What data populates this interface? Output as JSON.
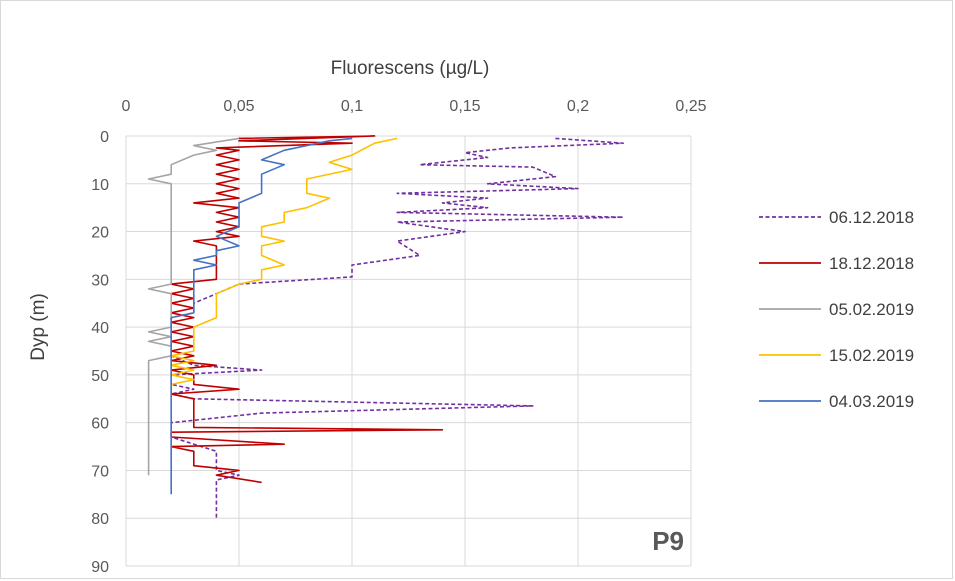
{
  "chart_data": {
    "type": "line",
    "title": "",
    "xlabel": "Fluorescens (µg/L)",
    "ylabel": "Dyp (m)",
    "xlim": [
      0,
      0.25
    ],
    "ylim": [
      0,
      90
    ],
    "x_ticks": [
      "0",
      "0,05",
      "0,1",
      "0,15",
      "0,2",
      "0,25"
    ],
    "y_ticks": [
      "0",
      "10",
      "20",
      "30",
      "40",
      "50",
      "60",
      "70",
      "80",
      "90"
    ],
    "x_tick_values": [
      0,
      0.05,
      0.1,
      0.15,
      0.2,
      0.25
    ],
    "y_tick_values": [
      0,
      10,
      20,
      30,
      40,
      50,
      60,
      70,
      80,
      90
    ],
    "x_axis_position": "top",
    "y_axis_inverted": true,
    "grid": true,
    "legend_position": "right",
    "panel_label": "P9",
    "series": [
      {
        "name": "06.12.2018",
        "color": "#7030a0",
        "dash": "dashed",
        "points": [
          [
            0.19,
            0.5
          ],
          [
            0.22,
            1.5
          ],
          [
            0.17,
            2.5
          ],
          [
            0.15,
            3.5
          ],
          [
            0.16,
            4.5
          ],
          [
            0.15,
            5
          ],
          [
            0.13,
            6
          ],
          [
            0.18,
            6.5
          ],
          [
            0.19,
            8.5
          ],
          [
            0.16,
            10
          ],
          [
            0.2,
            11
          ],
          [
            0.12,
            12
          ],
          [
            0.16,
            13
          ],
          [
            0.14,
            14
          ],
          [
            0.16,
            15
          ],
          [
            0.12,
            16
          ],
          [
            0.22,
            17
          ],
          [
            0.12,
            18
          ],
          [
            0.15,
            20
          ],
          [
            0.12,
            22
          ],
          [
            0.13,
            25
          ],
          [
            0.1,
            27
          ],
          [
            0.1,
            29.5
          ],
          [
            0.05,
            31
          ],
          [
            0.04,
            33
          ],
          [
            0.03,
            35
          ],
          [
            0.03,
            37
          ],
          [
            0.02,
            38
          ],
          [
            0.02,
            42
          ],
          [
            0.02,
            46
          ],
          [
            0.03,
            48
          ],
          [
            0.06,
            49
          ],
          [
            0.02,
            50
          ],
          [
            0.02,
            52
          ],
          [
            0.03,
            53
          ],
          [
            0.02,
            54
          ],
          [
            0.03,
            55
          ],
          [
            0.18,
            56.5
          ],
          [
            0.06,
            58
          ],
          [
            0.02,
            60
          ],
          [
            0.02,
            63
          ],
          [
            0.04,
            66
          ],
          [
            0.04,
            70
          ],
          [
            0.05,
            71
          ],
          [
            0.04,
            72
          ],
          [
            0.04,
            80
          ]
        ]
      },
      {
        "name": "18.12.2018",
        "color": "#c00000",
        "dash": "solid",
        "points": [
          [
            0.05,
            0.5
          ],
          [
            0.11,
            0
          ],
          [
            0.05,
            1
          ],
          [
            0.1,
            1.5
          ],
          [
            0.04,
            2.5
          ],
          [
            0.05,
            3
          ],
          [
            0.04,
            4
          ],
          [
            0.05,
            5
          ],
          [
            0.04,
            6
          ],
          [
            0.05,
            7
          ],
          [
            0.04,
            8
          ],
          [
            0.05,
            9
          ],
          [
            0.04,
            10
          ],
          [
            0.05,
            11
          ],
          [
            0.04,
            12
          ],
          [
            0.05,
            13
          ],
          [
            0.03,
            14
          ],
          [
            0.05,
            15
          ],
          [
            0.04,
            16
          ],
          [
            0.05,
            17
          ],
          [
            0.04,
            18
          ],
          [
            0.05,
            19
          ],
          [
            0.04,
            20
          ],
          [
            0.05,
            21
          ],
          [
            0.03,
            22
          ],
          [
            0.04,
            23
          ],
          [
            0.04,
            30
          ],
          [
            0.02,
            31
          ],
          [
            0.03,
            32
          ],
          [
            0.02,
            33
          ],
          [
            0.03,
            34
          ],
          [
            0.02,
            35
          ],
          [
            0.03,
            36
          ],
          [
            0.02,
            37
          ],
          [
            0.03,
            38
          ],
          [
            0.02,
            39
          ],
          [
            0.03,
            40
          ],
          [
            0.02,
            41
          ],
          [
            0.03,
            42
          ],
          [
            0.02,
            43
          ],
          [
            0.03,
            44
          ],
          [
            0.02,
            45
          ],
          [
            0.03,
            46
          ],
          [
            0.02,
            47
          ],
          [
            0.04,
            48
          ],
          [
            0.02,
            49
          ],
          [
            0.03,
            50
          ],
          [
            0.03,
            52
          ],
          [
            0.05,
            53
          ],
          [
            0.02,
            54
          ],
          [
            0.03,
            55
          ],
          [
            0.03,
            61
          ],
          [
            0.14,
            61.5
          ],
          [
            0.02,
            62
          ],
          [
            0.02,
            63
          ],
          [
            0.07,
            64.5
          ],
          [
            0.02,
            65
          ],
          [
            0.03,
            66
          ],
          [
            0.03,
            69
          ],
          [
            0.04,
            69.5
          ],
          [
            0.05,
            70
          ],
          [
            0.04,
            71
          ],
          [
            0.06,
            72.5
          ]
        ]
      },
      {
        "name": "05.02.2019",
        "color": "#a5a5a5",
        "dash": "solid",
        "points": [
          [
            0.05,
            0.5
          ],
          [
            0.03,
            2
          ],
          [
            0.04,
            3
          ],
          [
            0.03,
            4
          ],
          [
            0.02,
            6
          ],
          [
            0.02,
            8
          ],
          [
            0.01,
            9
          ],
          [
            0.02,
            10
          ],
          [
            0.02,
            31
          ],
          [
            0.01,
            32
          ],
          [
            0.02,
            33
          ],
          [
            0.02,
            38
          ],
          [
            0.02,
            40
          ],
          [
            0.01,
            41
          ],
          [
            0.02,
            42
          ],
          [
            0.01,
            43
          ],
          [
            0.02,
            44
          ],
          [
            0.02,
            46
          ],
          [
            0.01,
            47
          ],
          [
            0.01,
            71
          ]
        ]
      },
      {
        "name": "15.02.2019",
        "color": "#ffc000",
        "dash": "solid",
        "points": [
          [
            0.12,
            0.5
          ],
          [
            0.11,
            1.5
          ],
          [
            0.1,
            4
          ],
          [
            0.09,
            5.5
          ],
          [
            0.1,
            7
          ],
          [
            0.08,
            9
          ],
          [
            0.08,
            12
          ],
          [
            0.09,
            13
          ],
          [
            0.08,
            15
          ],
          [
            0.07,
            16
          ],
          [
            0.07,
            18
          ],
          [
            0.06,
            19
          ],
          [
            0.06,
            21
          ],
          [
            0.07,
            22
          ],
          [
            0.06,
            23
          ],
          [
            0.06,
            25
          ],
          [
            0.07,
            27
          ],
          [
            0.06,
            28
          ],
          [
            0.06,
            30
          ],
          [
            0.05,
            31
          ],
          [
            0.04,
            33
          ],
          [
            0.04,
            38
          ],
          [
            0.03,
            40
          ],
          [
            0.03,
            45
          ],
          [
            0.02,
            46
          ],
          [
            0.03,
            47
          ],
          [
            0.02,
            48
          ],
          [
            0.03,
            49
          ],
          [
            0.02,
            50
          ],
          [
            0.03,
            51
          ],
          [
            0.02,
            52
          ],
          [
            0.02,
            54
          ]
        ]
      },
      {
        "name": "04.03.2019",
        "color": "#4472c4",
        "dash": "solid",
        "points": [
          [
            0.1,
            0.5
          ],
          [
            0.09,
            1
          ],
          [
            0.07,
            3
          ],
          [
            0.06,
            5
          ],
          [
            0.07,
            6
          ],
          [
            0.06,
            8
          ],
          [
            0.06,
            12
          ],
          [
            0.05,
            14
          ],
          [
            0.05,
            19
          ],
          [
            0.04,
            21
          ],
          [
            0.05,
            23
          ],
          [
            0.04,
            24
          ],
          [
            0.04,
            25
          ],
          [
            0.03,
            26
          ],
          [
            0.04,
            27
          ],
          [
            0.03,
            28
          ],
          [
            0.03,
            37
          ],
          [
            0.02,
            38
          ],
          [
            0.02,
            75
          ]
        ]
      }
    ]
  }
}
